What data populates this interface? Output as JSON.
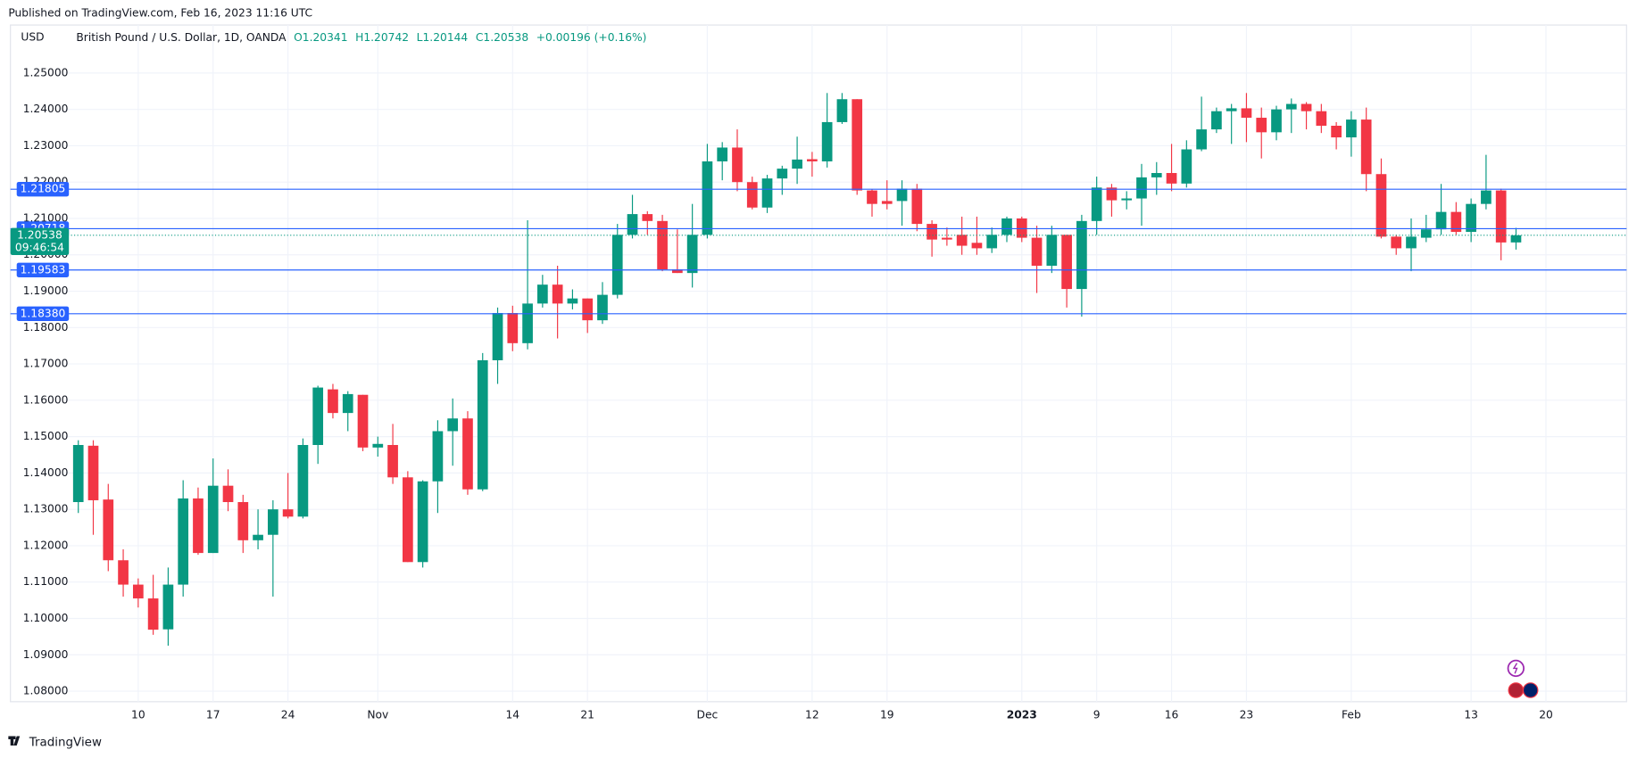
{
  "header": {
    "published": "Published on TradingView.com, Feb 16, 2023 11:16 UTC",
    "currency": "USD",
    "symbol": "British Pound / U.S. Dollar, 1D, OANDA",
    "open": "O1.20341",
    "high": "H1.20742",
    "low": "L1.20144",
    "close": "C1.20538",
    "change": "+0.00196 (+0.16%)"
  },
  "footer": {
    "brand": "TradingView"
  },
  "chart_data": {
    "type": "candlestick",
    "up_color": "#089981",
    "down_color": "#f23645",
    "grid": true,
    "categories": [
      null,
      null,
      null,
      null,
      "10",
      null,
      null,
      null,
      null,
      "17",
      null,
      null,
      null,
      null,
      "24",
      null,
      null,
      null,
      null,
      null,
      "Nov",
      null,
      null,
      null,
      null,
      null,
      null,
      null,
      null,
      "14",
      null,
      null,
      null,
      null,
      "21",
      null,
      null,
      null,
      null,
      null,
      null,
      null,
      "Dec",
      null,
      null,
      null,
      null,
      null,
      null,
      "12",
      null,
      null,
      null,
      null,
      "19",
      null,
      null,
      null,
      null,
      null,
      null,
      null,
      null,
      "2023",
      null,
      null,
      null,
      null,
      "9",
      null,
      null,
      null,
      null,
      "16",
      null,
      null,
      null,
      null,
      "23",
      null,
      null,
      null,
      null,
      null,
      null,
      "Feb",
      null,
      null,
      null,
      null,
      null,
      null,
      null,
      "13",
      null,
      null,
      null,
      null,
      "20"
    ],
    "open": [
      1.132,
      1.1475,
      1.1327,
      1.116,
      1.1093,
      1.1055,
      1.097,
      1.1093,
      1.133,
      1.118,
      1.1365,
      1.132,
      1.1215,
      1.123,
      1.13,
      1.128,
      1.1477,
      1.163,
      1.1565,
      1.1615,
      1.147,
      1.1477,
      1.1388,
      1.1155,
      1.1377,
      1.1515,
      1.155,
      1.1355,
      1.171,
      1.184,
      1.1757,
      1.1866,
      1.1918,
      1.1866,
      1.188,
      1.182,
      1.189,
      1.2055,
      1.2112,
      1.2093,
      1.196,
      1.195,
      1.2055,
      1.2257,
      1.2295,
      1.22,
      1.213,
      1.221,
      1.2237,
      1.2263,
      1.2257,
      1.2365,
      1.2428,
      1.2177,
      1.2148,
      1.2148,
      1.2182,
      1.2085,
      1.2047,
      1.2055,
      1.2033,
      1.2018,
      1.2055,
      1.21,
      1.2047,
      1.197,
      1.2055,
      1.1906,
      1.2093,
      1.2185,
      1.215,
      1.2155,
      1.2213,
      1.2225,
      1.2196,
      1.229,
      1.2345,
      1.2395,
      1.2403,
      1.2377,
      1.2337,
      1.24,
      1.2415,
      1.2395,
      1.2355,
      1.2323,
      1.2372,
      1.2222,
      1.205,
      1.2018,
      1.2047,
      1.207,
      1.2118,
      1.2063,
      1.214,
      1.2177,
      1.20341,
      null,
      null
    ],
    "high": [
      1.149,
      1.149,
      1.137,
      1.119,
      1.111,
      1.112,
      1.114,
      1.138,
      1.136,
      1.144,
      1.141,
      1.134,
      1.13,
      1.1325,
      1.14,
      1.1495,
      1.164,
      1.1645,
      1.1625,
      1.1615,
      1.15,
      1.1535,
      1.1405,
      1.138,
      1.1545,
      1.1605,
      1.157,
      1.173,
      1.1855,
      1.186,
      1.2095,
      1.1945,
      1.197,
      1.1905,
      1.188,
      1.1925,
      1.2085,
      1.2165,
      1.212,
      1.211,
      1.207,
      1.214,
      1.2305,
      1.231,
      1.2345,
      1.2215,
      1.222,
      1.2245,
      1.2325,
      1.2283,
      1.2445,
      1.2445,
      1.2428,
      1.218,
      1.2205,
      1.2205,
      1.2195,
      1.2095,
      1.2075,
      1.2105,
      1.2105,
      1.2075,
      1.2105,
      1.2105,
      1.208,
      1.208,
      1.2055,
      1.211,
      1.2215,
      1.2195,
      1.2175,
      1.225,
      1.2255,
      1.2305,
      1.2315,
      1.2435,
      1.2405,
      1.2415,
      1.2445,
      1.2405,
      1.241,
      1.243,
      1.242,
      1.2415,
      1.2365,
      1.2395,
      1.2405,
      1.2265,
      1.2055,
      1.21,
      1.211,
      1.2195,
      1.2145,
      1.2155,
      1.2275,
      1.2182,
      1.20742,
      null,
      null
    ],
    "low": [
      1.129,
      1.123,
      1.113,
      1.106,
      1.103,
      1.0955,
      1.0925,
      1.106,
      1.1175,
      1.118,
      1.1295,
      1.118,
      1.119,
      1.106,
      1.1275,
      1.1275,
      1.1425,
      1.155,
      1.1515,
      1.146,
      1.1445,
      1.137,
      1.1155,
      1.114,
      1.129,
      1.142,
      1.134,
      1.135,
      1.1645,
      1.1735,
      1.174,
      1.1855,
      1.177,
      1.185,
      1.1785,
      1.181,
      1.188,
      1.2045,
      1.2055,
      1.1955,
      1.195,
      1.191,
      1.2045,
      1.2205,
      1.2175,
      1.2125,
      1.2115,
      1.2165,
      1.2195,
      1.2215,
      1.224,
      1.236,
      1.2165,
      1.2105,
      1.2125,
      1.208,
      1.2065,
      1.1995,
      1.2025,
      1.2,
      1.2,
      1.2005,
      1.2035,
      1.2035,
      1.1895,
      1.195,
      1.1855,
      1.183,
      1.2055,
      1.2105,
      1.2125,
      1.208,
      1.2165,
      1.2175,
      1.2185,
      1.2285,
      1.2335,
      1.2305,
      1.231,
      1.2265,
      1.2315,
      1.2335,
      1.2345,
      1.2335,
      1.229,
      1.227,
      1.2175,
      1.2045,
      1.2,
      1.1955,
      1.2035,
      1.2055,
      1.2055,
      1.2035,
      1.2125,
      1.1985,
      1.20144,
      null,
      null
    ],
    "close": [
      1.1477,
      1.1325,
      1.116,
      1.1093,
      1.1055,
      1.0969,
      1.1093,
      1.133,
      1.118,
      1.1365,
      1.132,
      1.1215,
      1.123,
      1.13,
      1.128,
      1.1477,
      1.1635,
      1.1565,
      1.1617,
      1.147,
      1.148,
      1.1388,
      1.1155,
      1.1377,
      1.1515,
      1.155,
      1.1355,
      1.171,
      1.184,
      1.1757,
      1.1866,
      1.1918,
      1.1866,
      1.188,
      1.182,
      1.189,
      1.2055,
      1.2112,
      1.2093,
      1.196,
      1.195,
      1.2055,
      1.2257,
      1.2295,
      1.22,
      1.213,
      1.221,
      1.2237,
      1.2262,
      1.2257,
      1.2365,
      1.2428,
      1.2177,
      1.214,
      1.214,
      1.2182,
      1.2085,
      1.2042,
      1.2042,
      1.2025,
      1.2018,
      1.2055,
      1.21,
      1.2047,
      1.197,
      1.2055,
      1.1906,
      1.2093,
      1.2185,
      1.215,
      1.2155,
      1.2213,
      1.2225,
      1.2196,
      1.229,
      1.2345,
      1.2395,
      1.2403,
      1.2377,
      1.2337,
      1.24,
      1.2415,
      1.2395,
      1.2355,
      1.2323,
      1.2372,
      1.2222,
      1.205,
      1.2018,
      1.205,
      1.207,
      1.2118,
      1.2063,
      1.214,
      1.2177,
      1.2034,
      1.20538,
      null,
      null
    ],
    "ylim": [
      1.0771,
      1.2632
    ],
    "yticks": [
      {
        "value": 1.08,
        "label": "1.08000"
      },
      {
        "value": 1.09,
        "label": "1.09000"
      },
      {
        "value": 1.1,
        "label": "1.10000"
      },
      {
        "value": 1.11,
        "label": "1.11000"
      },
      {
        "value": 1.12,
        "label": "1.12000"
      },
      {
        "value": 1.13,
        "label": "1.13000"
      },
      {
        "value": 1.14,
        "label": "1.14000"
      },
      {
        "value": 1.15,
        "label": "1.15000"
      },
      {
        "value": 1.16,
        "label": "1.16000"
      },
      {
        "value": 1.17,
        "label": "1.17000"
      },
      {
        "value": 1.18,
        "label": "1.18000"
      },
      {
        "value": 1.19,
        "label": "1.19000"
      },
      {
        "value": 1.2,
        "label": "1.20000"
      },
      {
        "value": 1.21,
        "label": "1.21000"
      },
      {
        "value": 1.22,
        "label": "1.22000"
      },
      {
        "value": 1.23,
        "label": "1.23000"
      },
      {
        "value": 1.24,
        "label": "1.24000"
      },
      {
        "value": 1.25,
        "label": "1.25000"
      }
    ],
    "hlines": [
      {
        "value": 1.21805,
        "label": "1.21805"
      },
      {
        "value": 1.20718,
        "label": "1.20718"
      },
      {
        "value": 1.19583,
        "label": "1.19583"
      },
      {
        "value": 1.1838,
        "label": "1.18380"
      }
    ],
    "hline_color": "#2962ff",
    "last_price": {
      "value": 1.20538,
      "countdown": "09:46:54"
    }
  }
}
